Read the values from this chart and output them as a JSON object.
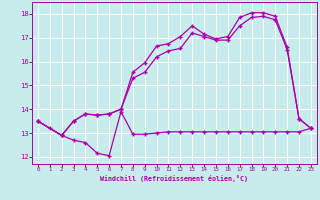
{
  "xlabel": "Windchill (Refroidissement éolien,°C)",
  "xlim": [
    -0.5,
    23.5
  ],
  "ylim": [
    11.7,
    18.5
  ],
  "yticks": [
    12,
    13,
    14,
    15,
    16,
    17,
    18
  ],
  "xticks": [
    0,
    1,
    2,
    3,
    4,
    5,
    6,
    7,
    8,
    9,
    10,
    11,
    12,
    13,
    14,
    15,
    16,
    17,
    18,
    19,
    20,
    21,
    22,
    23
  ],
  "bg_color": "#c8ecec",
  "line_color": "#aa00aa",
  "grid_color": "#ffffff",
  "line1_x": [
    0,
    1,
    2,
    3,
    4,
    5,
    6,
    7,
    8,
    9,
    10,
    11,
    12,
    13,
    14,
    15,
    16,
    17,
    18,
    19,
    20,
    21,
    22,
    23
  ],
  "line1_y": [
    13.5,
    13.2,
    12.9,
    12.7,
    12.6,
    12.15,
    12.05,
    13.9,
    12.95,
    12.95,
    13.0,
    13.05,
    13.05,
    13.05,
    13.05,
    13.05,
    13.05,
    13.05,
    13.05,
    13.05,
    13.05,
    13.05,
    13.05,
    13.2
  ],
  "line2_x": [
    0,
    2,
    3,
    4,
    5,
    6,
    7,
    8,
    9,
    10,
    11,
    12,
    13,
    14,
    15,
    16,
    17,
    18,
    19,
    20,
    21,
    22,
    23
  ],
  "line2_y": [
    13.5,
    12.9,
    13.5,
    13.8,
    13.75,
    13.8,
    14.0,
    15.3,
    15.55,
    16.2,
    16.45,
    16.55,
    17.2,
    17.05,
    16.9,
    16.9,
    17.5,
    17.85,
    17.9,
    17.75,
    16.5,
    13.6,
    13.2
  ],
  "line3_x": [
    0,
    2,
    3,
    4,
    5,
    6,
    7,
    8,
    9,
    10,
    11,
    12,
    13,
    14,
    15,
    16,
    17,
    18,
    19,
    20,
    21,
    22,
    23
  ],
  "line3_y": [
    13.5,
    12.9,
    13.5,
    13.8,
    13.75,
    13.8,
    14.0,
    15.55,
    15.95,
    16.65,
    16.75,
    17.05,
    17.5,
    17.15,
    16.95,
    17.05,
    17.85,
    18.05,
    18.05,
    17.9,
    16.6,
    13.6,
    13.2
  ]
}
